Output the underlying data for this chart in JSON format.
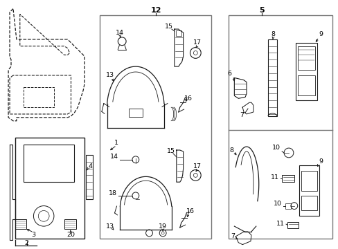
{
  "bg_color": "#ffffff",
  "line_color": "#1a1a1a",
  "box_color": "#777777",
  "fig_width": 4.89,
  "fig_height": 3.6,
  "dpi": 100
}
